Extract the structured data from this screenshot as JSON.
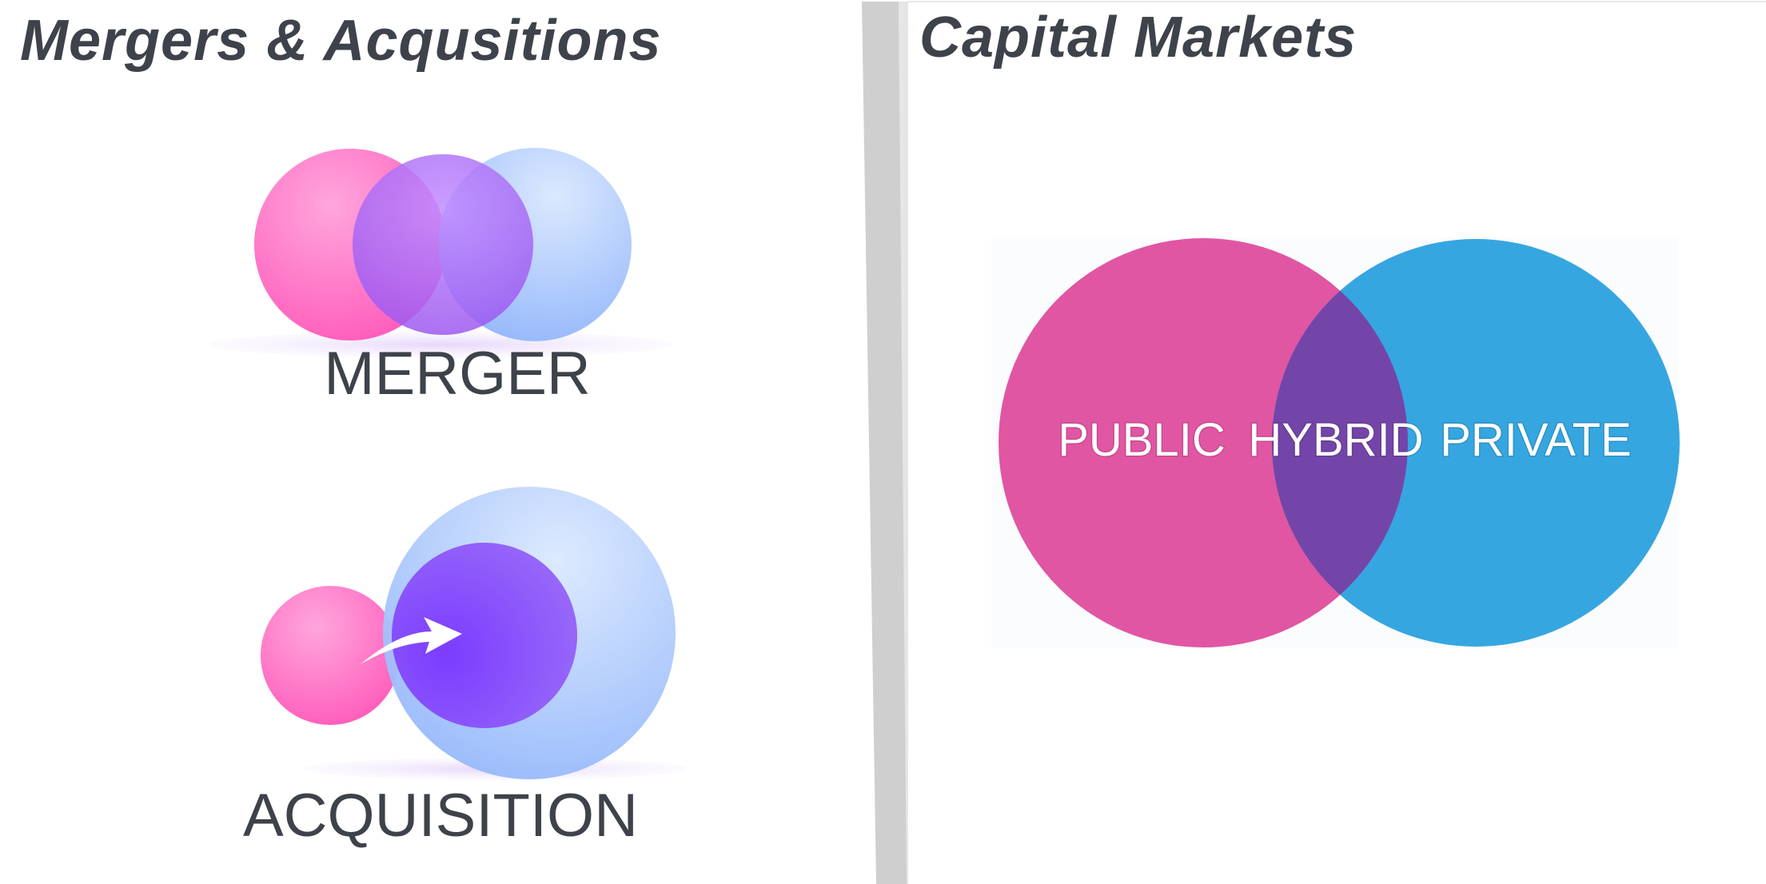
{
  "left_panel": {
    "title": "Mergers & Acqusitions",
    "merger_label": "MERGER",
    "acquisition_label": "ACQUISITION",
    "colors": {
      "pink": "#ff6fc0",
      "purple": "#a860f0",
      "blue": "#a9c8fb",
      "text": "#3e424a"
    }
  },
  "right_panel": {
    "title": "Capital Markets",
    "labels": {
      "public": "PUBLIC",
      "hybrid": "HYBRID",
      "private": "PRIVATE"
    },
    "colors": {
      "public": "#e056a3",
      "private": "#36a6e0",
      "hybrid": "#7445a8"
    }
  }
}
